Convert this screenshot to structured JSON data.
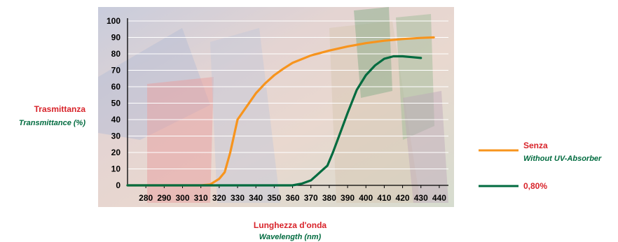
{
  "chart_data": {
    "type": "line",
    "title": "",
    "ylabel": "Trasmittanza",
    "ylabel_secondary": "Transmittance (%)",
    "xlabel": "Lunghezza d'onda",
    "xlabel_secondary": "Wavelength (nm)",
    "xlim": [
      270,
      445
    ],
    "ylim": [
      0,
      100
    ],
    "x_ticks": [
      280,
      290,
      300,
      310,
      320,
      330,
      340,
      350,
      360,
      370,
      380,
      390,
      400,
      410,
      420,
      430,
      440
    ],
    "y_ticks": [
      0,
      10,
      20,
      30,
      40,
      50,
      60,
      70,
      80,
      90,
      100
    ],
    "grid": "horizontal",
    "legend_position": "right",
    "series": [
      {
        "name": "Senza",
        "name_secondary": "Without UV-Absorber",
        "color": "#f7941d",
        "x": [
          270,
          300,
          310,
          315,
          320,
          323,
          326,
          330,
          335,
          340,
          345,
          350,
          355,
          360,
          370,
          380,
          390,
          400,
          410,
          420,
          430,
          437
        ],
        "y": [
          0,
          0,
          0,
          0.5,
          4,
          8,
          20,
          40,
          48,
          56,
          62,
          67,
          71,
          74.5,
          79,
          82,
          84.5,
          86.5,
          88,
          89,
          89.7,
          90
        ]
      },
      {
        "name": "0,80%",
        "name_secondary": "",
        "color": "#006b3f",
        "x": [
          270,
          330,
          360,
          365,
          370,
          373,
          376,
          379,
          382,
          385,
          390,
          395,
          400,
          405,
          410,
          415,
          420,
          425,
          430
        ],
        "y": [
          0,
          0,
          0,
          1,
          3,
          6,
          9,
          12,
          20,
          29,
          44,
          58,
          67,
          73,
          77,
          78.5,
          78.5,
          78,
          77.5
        ]
      }
    ]
  }
}
